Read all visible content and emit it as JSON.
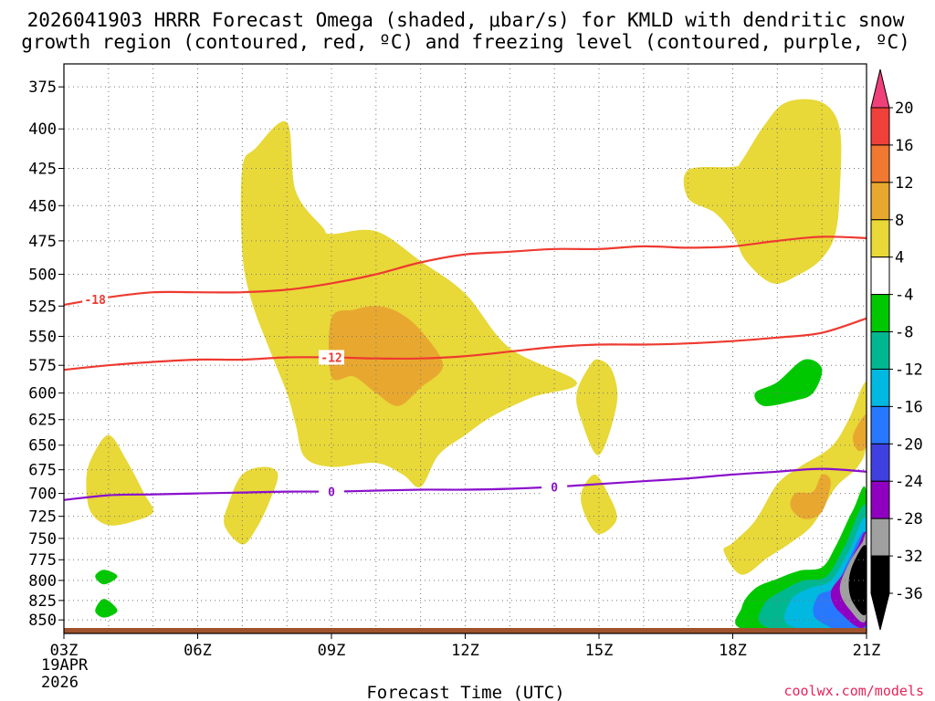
{
  "title_line1": "2026041903 HRRR Forecast Omega (shaded, μbar/s) for KMLD with dendritic snow",
  "title_line2": "growth region (contoured, red, ºC) and freezing level (contoured, purple, ºC)",
  "credit": "coolwx.com/models",
  "chart_data": {
    "type": "time-height cross section",
    "xlabel": "Forecast Time (UTC)",
    "x_ticks": [
      "03Z",
      "06Z",
      "09Z",
      "12Z",
      "15Z",
      "18Z",
      "21Z"
    ],
    "x_date_lines": [
      "19APR",
      "2026"
    ],
    "x_range_hours": [
      3,
      21
    ],
    "y_ticks": [
      375,
      400,
      425,
      450,
      475,
      500,
      525,
      550,
      575,
      600,
      625,
      650,
      675,
      700,
      725,
      750,
      775,
      800,
      825,
      850
    ],
    "y_range_mb": [
      362,
      863
    ],
    "y_axis": "pressure (mb), reversed",
    "grid": true,
    "colorbar": {
      "labels": [
        "20",
        "16",
        "12",
        "8",
        "4",
        "-4",
        "-8",
        "-12",
        "-16",
        "-20",
        "-24",
        "-28",
        "-32",
        "-36"
      ],
      "bounds": [
        20,
        16,
        12,
        8,
        4,
        -4,
        -8,
        -12,
        -16,
        -20,
        -24,
        -28,
        -32,
        -36
      ],
      "colors": [
        "#f0407a",
        "#f0403a",
        "#f07830",
        "#e8a830",
        "#e8d838",
        "#ffffff",
        "#00c800",
        "#00b890",
        "#00b8e0",
        "#2878ff",
        "#4040e0",
        "#9000c0",
        "#a0a0a0",
        "#000000"
      ]
    },
    "contours": [
      {
        "name": "-18",
        "color": "#ee3a30",
        "label_hour": 3.7,
        "points": [
          [
            3,
            524
          ],
          [
            4,
            518
          ],
          [
            5,
            514
          ],
          [
            6,
            514
          ],
          [
            7,
            514
          ],
          [
            8,
            512
          ],
          [
            9,
            507
          ],
          [
            10,
            500
          ],
          [
            11,
            491
          ],
          [
            12,
            485
          ],
          [
            13,
            483
          ],
          [
            14,
            481
          ],
          [
            15,
            481
          ],
          [
            16,
            479
          ],
          [
            17,
            480
          ],
          [
            18,
            479
          ],
          [
            19,
            475
          ],
          [
            20,
            472
          ],
          [
            21,
            473
          ]
        ]
      },
      {
        "name": "-12",
        "color": "#ee3a30",
        "label_hour": 9.0,
        "points": [
          [
            3,
            579
          ],
          [
            4,
            575
          ],
          [
            5,
            572
          ],
          [
            6,
            570
          ],
          [
            7,
            570
          ],
          [
            8,
            568
          ],
          [
            9,
            568
          ],
          [
            10,
            569
          ],
          [
            11,
            569
          ],
          [
            12,
            567
          ],
          [
            13,
            563
          ],
          [
            14,
            559
          ],
          [
            15,
            557
          ],
          [
            16,
            557
          ],
          [
            17,
            556
          ],
          [
            18,
            554
          ],
          [
            19,
            551
          ],
          [
            20,
            547
          ],
          [
            21,
            535
          ]
        ]
      },
      {
        "name": "0",
        "color": "#8a10cc",
        "label_hour": 9.0,
        "points": [
          [
            3,
            707
          ],
          [
            4,
            702
          ],
          [
            5,
            701
          ],
          [
            6,
            700
          ],
          [
            7,
            699
          ],
          [
            8,
            698
          ],
          [
            9,
            698
          ],
          [
            10,
            697
          ],
          [
            11,
            696
          ],
          [
            12,
            696
          ],
          [
            13,
            695
          ],
          [
            14,
            693
          ],
          [
            15,
            690
          ],
          [
            16,
            687
          ],
          [
            17,
            684
          ],
          [
            18,
            680
          ],
          [
            19,
            677
          ],
          [
            20,
            674
          ],
          [
            21,
            677
          ]
        ]
      }
    ],
    "contour_extra_labels": [
      {
        "name": "0",
        "hour": 14.0
      }
    ],
    "omega_regions": [
      {
        "value_range": "4 to 8",
        "color": "#e8d838",
        "points": [
          [
            7.0,
            425
          ],
          [
            7.3,
            412
          ],
          [
            8.0,
            396
          ],
          [
            8.2,
            440
          ],
          [
            8.8,
            465
          ],
          [
            9.0,
            470
          ],
          [
            10.0,
            468
          ],
          [
            11.0,
            490
          ],
          [
            12.0,
            515
          ],
          [
            13.0,
            560
          ],
          [
            14.5,
            590
          ],
          [
            13.5,
            604
          ],
          [
            12.6,
            622
          ],
          [
            12.0,
            640
          ],
          [
            11.4,
            660
          ],
          [
            11.0,
            693
          ],
          [
            10.6,
            680
          ],
          [
            10.0,
            668
          ],
          [
            9.0,
            672
          ],
          [
            8.4,
            662
          ],
          [
            8.2,
            630
          ],
          [
            8.0,
            600
          ],
          [
            7.6,
            560
          ],
          [
            7.2,
            520
          ],
          [
            7.0,
            483
          ]
        ]
      },
      {
        "value_range": "4 to 8",
        "color": "#e8d838",
        "points": [
          [
            3.6,
            665
          ],
          [
            4.0,
            640
          ],
          [
            4.4,
            665
          ],
          [
            4.8,
            700
          ],
          [
            5.0,
            720
          ],
          [
            4.6,
            730
          ],
          [
            4.0,
            735
          ],
          [
            3.6,
            720
          ],
          [
            3.5,
            690
          ]
        ]
      },
      {
        "value_range": "4 to 8",
        "color": "#e8d838",
        "points": [
          [
            7.0,
            680
          ],
          [
            7.5,
            672
          ],
          [
            7.8,
            680
          ],
          [
            7.6,
            710
          ],
          [
            7.3,
            740
          ],
          [
            7.0,
            757
          ],
          [
            6.6,
            735
          ],
          [
            6.7,
            710
          ]
        ]
      },
      {
        "value_range": "4 to 8",
        "color": "#e8d838",
        "points": [
          [
            15.0,
            570
          ],
          [
            15.3,
            580
          ],
          [
            15.4,
            610
          ],
          [
            15.0,
            660
          ],
          [
            14.6,
            625
          ],
          [
            14.5,
            600
          ],
          [
            14.8,
            575
          ]
        ]
      },
      {
        "value_range": "4 to 8",
        "color": "#e8d838",
        "points": [
          [
            14.9,
            680
          ],
          [
            15.2,
            700
          ],
          [
            15.4,
            728
          ],
          [
            15.0,
            745
          ],
          [
            14.7,
            725
          ],
          [
            14.6,
            700
          ]
        ]
      },
      {
        "value_range": "4 to 8",
        "color": "#e8d838",
        "points": [
          [
            17.0,
            426
          ],
          [
            18.0,
            424
          ],
          [
            18.2,
            420
          ],
          [
            18.7,
            398
          ],
          [
            19.2,
            384
          ],
          [
            20.0,
            384
          ],
          [
            20.4,
            400
          ],
          [
            20.4,
            440
          ],
          [
            20.3,
            470
          ],
          [
            20.0,
            488
          ],
          [
            19.5,
            500
          ],
          [
            18.9,
            507
          ],
          [
            18.3,
            490
          ],
          [
            18.0,
            470
          ],
          [
            17.6,
            455
          ],
          [
            17.0,
            445
          ]
        ]
      },
      {
        "value_range": "4 to 8",
        "color": "#e8d838",
        "points": [
          [
            18.0,
            755
          ],
          [
            18.5,
            730
          ],
          [
            19.0,
            690
          ],
          [
            19.5,
            672
          ],
          [
            20.2,
            652
          ],
          [
            20.6,
            625
          ],
          [
            21.0,
            590
          ],
          [
            21.0,
            648
          ],
          [
            20.8,
            672
          ],
          [
            20.3,
            694
          ],
          [
            19.8,
            734
          ],
          [
            19.3,
            755
          ],
          [
            18.8,
            772
          ],
          [
            18.2,
            793
          ],
          [
            17.8,
            765
          ]
        ]
      },
      {
        "value_range": "8 to 12",
        "color": "#e8a830",
        "points": [
          [
            9.0,
            535
          ],
          [
            9.5,
            528
          ],
          [
            10.0,
            525
          ],
          [
            10.5,
            530
          ],
          [
            11.0,
            545
          ],
          [
            11.5,
            575
          ],
          [
            11.0,
            595
          ],
          [
            10.5,
            612
          ],
          [
            10.0,
            600
          ],
          [
            9.5,
            585
          ],
          [
            9.0,
            585
          ]
        ]
      },
      {
        "value_range": "8 to 12",
        "color": "#e8a830",
        "points": [
          [
            19.8,
            698
          ],
          [
            20.0,
            680
          ],
          [
            20.2,
            688
          ],
          [
            20.0,
            720
          ],
          [
            19.6,
            728
          ],
          [
            19.3,
            715
          ],
          [
            19.4,
            700
          ]
        ]
      },
      {
        "value_range": "8 to 12",
        "color": "#e8a830",
        "points": [
          [
            20.7,
            640
          ],
          [
            21.0,
            620
          ],
          [
            21.0,
            650
          ],
          [
            20.8,
            655
          ]
        ]
      },
      {
        "value_range": "-4 to -8",
        "color": "#00c800",
        "points": [
          [
            18.5,
            600
          ],
          [
            19.0,
            590
          ],
          [
            19.6,
            570
          ],
          [
            20.0,
            578
          ],
          [
            19.8,
            600
          ],
          [
            19.4,
            607
          ],
          [
            18.7,
            612
          ]
        ]
      },
      {
        "value_range": "-4 to -8",
        "color": "#00c800",
        "points": [
          [
            3.9,
            787
          ],
          [
            4.2,
            795
          ],
          [
            3.9,
            805
          ],
          [
            3.7,
            795
          ]
        ]
      },
      {
        "value_range": "-4 to -8",
        "color": "#00c800",
        "points": [
          [
            3.9,
            823
          ],
          [
            4.2,
            838
          ],
          [
            3.9,
            847
          ],
          [
            3.7,
            838
          ]
        ]
      },
      {
        "value_range": "-4 to -8",
        "color": "#00c800",
        "points": [
          [
            18.2,
            834
          ],
          [
            18.5,
            810
          ],
          [
            19.0,
            798
          ],
          [
            19.5,
            788
          ],
          [
            20.0,
            784
          ],
          [
            20.3,
            760
          ],
          [
            20.7,
            718
          ],
          [
            21.0,
            700
          ],
          [
            21.0,
            863
          ],
          [
            18.3,
            863
          ]
        ]
      },
      {
        "value_range": "-8 to -12",
        "color": "#00b890",
        "points": [
          [
            18.7,
            830
          ],
          [
            19.2,
            810
          ],
          [
            19.6,
            800
          ],
          [
            20.1,
            795
          ],
          [
            20.5,
            760
          ],
          [
            21.0,
            715
          ],
          [
            21.0,
            863
          ],
          [
            18.8,
            860
          ]
        ]
      },
      {
        "value_range": "-12 to -16",
        "color": "#00b8e0",
        "points": [
          [
            19.3,
            825
          ],
          [
            19.7,
            810
          ],
          [
            20.2,
            800
          ],
          [
            20.6,
            765
          ],
          [
            21.0,
            730
          ],
          [
            21.0,
            863
          ],
          [
            19.3,
            858
          ]
        ]
      },
      {
        "value_range": "-16 to -20",
        "color": "#2878ff",
        "points": [
          [
            19.9,
            820
          ],
          [
            20.3,
            808
          ],
          [
            20.6,
            775
          ],
          [
            21.0,
            745
          ],
          [
            21.0,
            863
          ],
          [
            19.9,
            850
          ]
        ]
      },
      {
        "value_range": "-24 to -28",
        "color": "#9000c0",
        "points": [
          [
            20.2,
            815
          ],
          [
            20.5,
            790
          ],
          [
            20.8,
            760
          ],
          [
            21.0,
            748
          ],
          [
            21.0,
            855
          ],
          [
            20.4,
            840
          ]
        ]
      },
      {
        "value_range": "-32 to -36",
        "color": "#a0a0a0",
        "points": [
          [
            20.4,
            810
          ],
          [
            20.6,
            780
          ],
          [
            20.9,
            755
          ],
          [
            21.0,
            750
          ],
          [
            21.0,
            848
          ],
          [
            20.6,
            835
          ]
        ]
      },
      {
        "value_range": "< -36",
        "color": "#000000",
        "points": [
          [
            20.6,
            805
          ],
          [
            20.7,
            780
          ],
          [
            21.0,
            760
          ],
          [
            21.0,
            840
          ],
          [
            20.7,
            828
          ]
        ]
      }
    ]
  }
}
